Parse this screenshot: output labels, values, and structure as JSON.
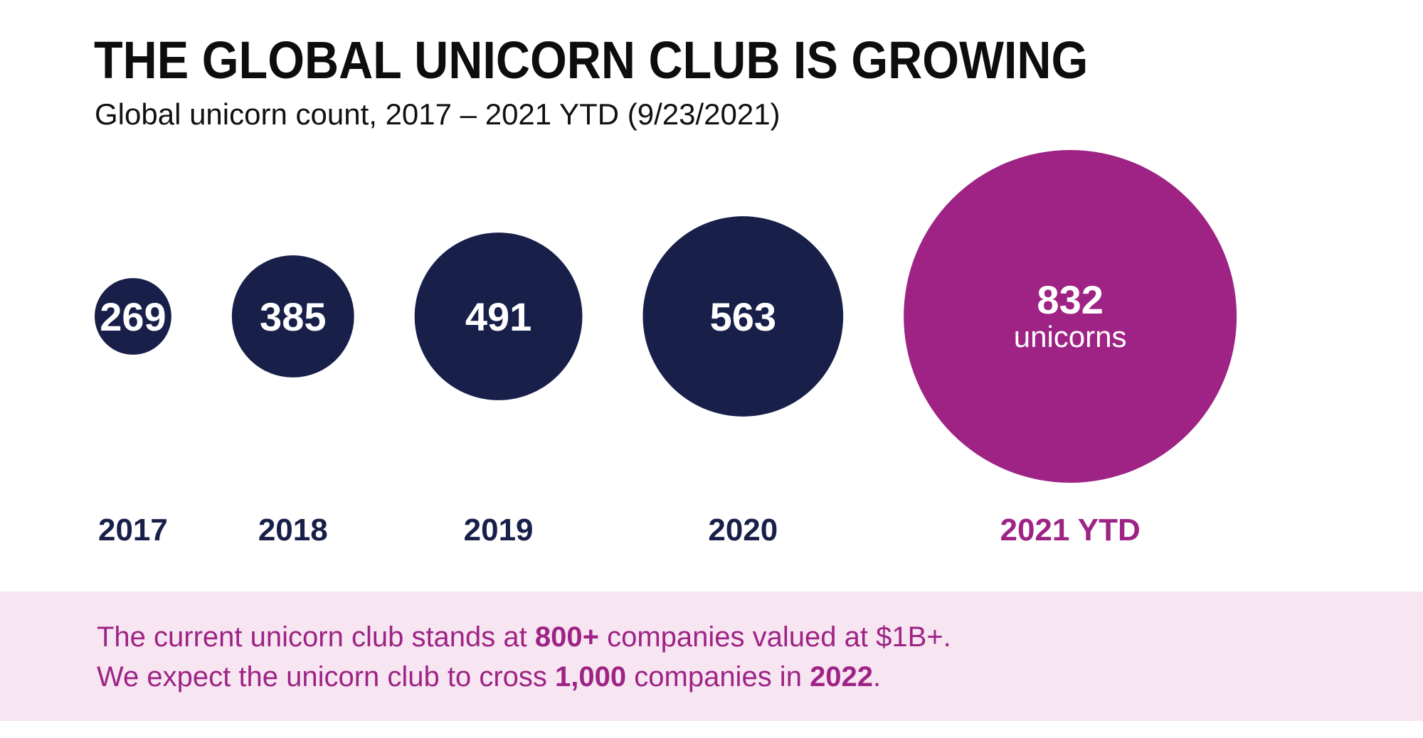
{
  "title": "THE GLOBAL UNICORN CLUB IS GROWING",
  "subtitle": "Global unicorn count, 2017 – 2021 YTD (9/23/2021)",
  "colors": {
    "navy": "#18204a",
    "magenta": "#9e2385",
    "callout_bg": "#f7e6f2"
  },
  "chart_data": {
    "type": "bubble",
    "categories": [
      "2017",
      "2018",
      "2019",
      "2020",
      "2021 YTD"
    ],
    "values": [
      269,
      385,
      491,
      563,
      832
    ],
    "bubble_sublabels": [
      "",
      "",
      "",
      "",
      "unicorns"
    ],
    "highlight_index": 4
  },
  "callout": {
    "line1": {
      "a": "The current unicorn club stands at ",
      "b": "800+",
      "c": " companies valued at $1B+."
    },
    "line2": {
      "a": "We expect the unicorn club to cross ",
      "b": "1,000",
      "c": " companies in ",
      "d": "2022",
      "e": "."
    }
  }
}
